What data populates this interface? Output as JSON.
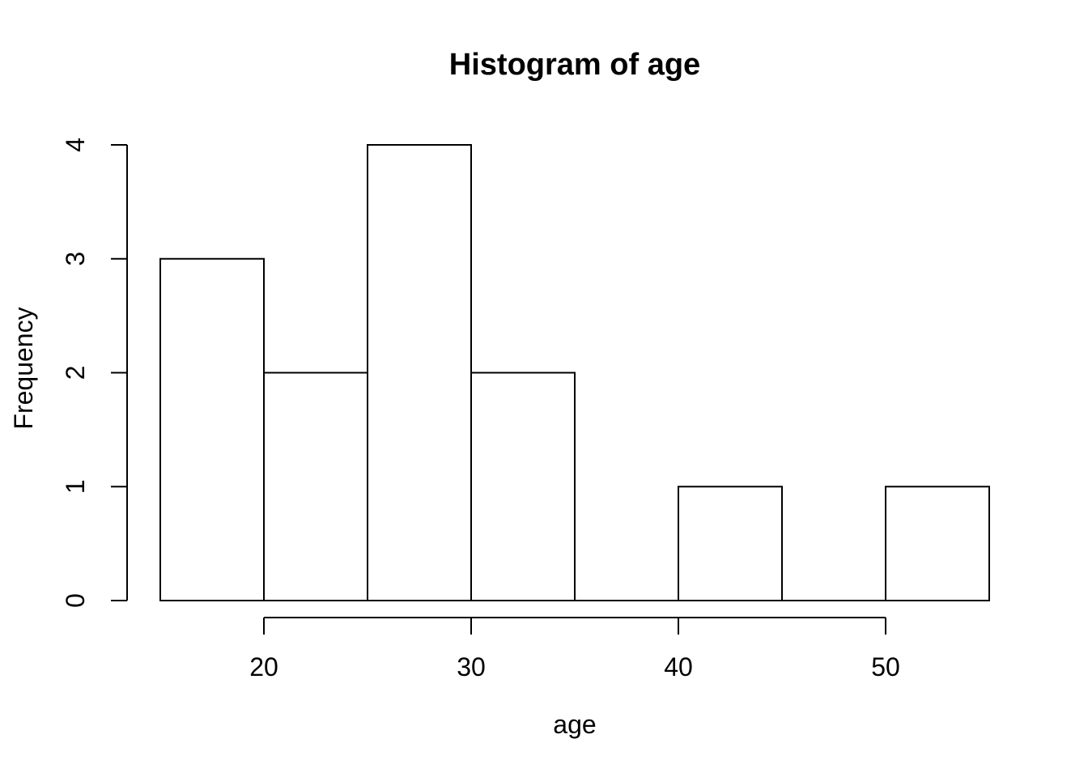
{
  "page": {
    "background": "#ffffff"
  },
  "chart_data": {
    "type": "bar",
    "subtype": "histogram",
    "title": "Histogram of age",
    "xlabel": "age",
    "ylabel": "Frequency",
    "bin_edges": [
      15,
      20,
      25,
      30,
      35,
      40,
      45,
      50,
      55
    ],
    "counts": [
      3,
      2,
      4,
      2,
      0,
      1,
      0,
      1
    ],
    "x_ticks": [
      20,
      30,
      40,
      50
    ],
    "y_ticks": [
      0,
      1,
      2,
      3,
      4
    ],
    "xlim": [
      15,
      55
    ],
    "ylim": [
      0,
      4
    ],
    "grid": false,
    "legend": null,
    "colors": {
      "bar_fill": "#ffffff",
      "stroke": "#000000",
      "text": "#000000",
      "background": "#ffffff"
    }
  }
}
